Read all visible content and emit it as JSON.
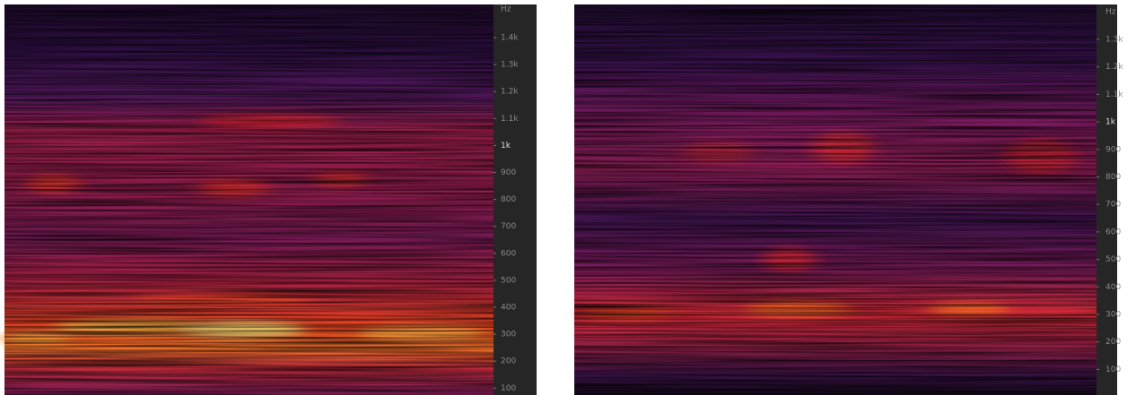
{
  "panels": [
    {
      "axis": {
        "unit": "Hz",
        "ticks": [
          "1.4k",
          "1.3k",
          "1.2k",
          "1.1k",
          "1k",
          "900",
          "800",
          "700",
          "600",
          "500",
          "400",
          "300",
          "200",
          "100"
        ]
      }
    },
    {
      "axis": {
        "unit": "Hz",
        "ticks": [
          "1.3k",
          "1.2k",
          "1.1k",
          "1k",
          "900",
          "800",
          "700",
          "600",
          "500",
          "400",
          "300",
          "200",
          "100"
        ]
      }
    }
  ]
}
